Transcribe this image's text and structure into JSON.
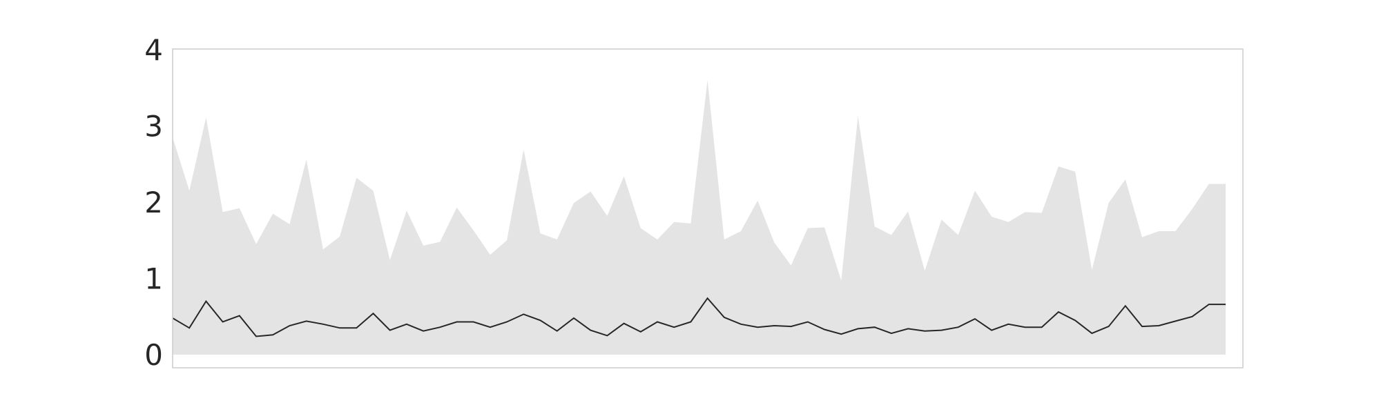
{
  "chart_data": {
    "type": "area",
    "title": "",
    "xlabel": "",
    "ylabel": "",
    "ylim": [
      0,
      4
    ],
    "y_ticks": [
      "0",
      "1",
      "2",
      "3",
      "4"
    ],
    "grid": false,
    "legend": "none",
    "x": [
      0,
      1,
      2,
      3,
      4,
      5,
      6,
      7,
      8,
      9,
      10,
      11,
      12,
      13,
      14,
      15,
      16,
      17,
      18,
      19,
      20,
      21,
      22,
      23,
      24,
      25,
      26,
      27,
      28,
      29,
      30,
      31,
      32,
      33,
      34,
      35,
      36,
      37,
      38,
      39,
      40,
      41,
      42,
      43,
      44,
      45,
      46,
      47,
      48,
      49,
      50,
      51,
      52,
      53,
      54,
      55,
      56,
      57,
      58,
      59,
      60,
      61,
      62,
      63
    ],
    "series": [
      {
        "kind": "area",
        "color": "#e4e4e4",
        "values": [
          2.85,
          2.15,
          3.11,
          1.87,
          1.92,
          1.45,
          1.85,
          1.71,
          2.56,
          1.38,
          1.55,
          2.32,
          2.15,
          1.24,
          1.89,
          1.43,
          1.48,
          1.93,
          1.63,
          1.31,
          1.5,
          2.69,
          1.59,
          1.51,
          1.99,
          2.14,
          1.82,
          2.34,
          1.66,
          1.51,
          1.74,
          1.72,
          3.6,
          1.51,
          1.62,
          2.02,
          1.47,
          1.17,
          1.66,
          1.67,
          0.97,
          3.13,
          1.68,
          1.57,
          1.88,
          1.1,
          1.77,
          1.57,
          2.15,
          1.81,
          1.74,
          1.87,
          1.86,
          2.47,
          2.4,
          1.11,
          1.99,
          2.3,
          1.54,
          1.62,
          1.62,
          1.91,
          2.24,
          2.24
        ]
      },
      {
        "kind": "line",
        "color": "#262626",
        "values": [
          0.48,
          0.35,
          0.7,
          0.43,
          0.51,
          0.24,
          0.26,
          0.38,
          0.44,
          0.4,
          0.35,
          0.35,
          0.54,
          0.32,
          0.4,
          0.31,
          0.36,
          0.43,
          0.43,
          0.36,
          0.43,
          0.53,
          0.45,
          0.31,
          0.48,
          0.32,
          0.25,
          0.41,
          0.3,
          0.43,
          0.36,
          0.43,
          0.74,
          0.49,
          0.4,
          0.36,
          0.38,
          0.37,
          0.43,
          0.33,
          0.27,
          0.34,
          0.36,
          0.28,
          0.34,
          0.31,
          0.32,
          0.36,
          0.47,
          0.32,
          0.4,
          0.36,
          0.36,
          0.56,
          0.45,
          0.28,
          0.37,
          0.64,
          0.37,
          0.38,
          0.44,
          0.5,
          0.66,
          0.66
        ]
      }
    ]
  }
}
